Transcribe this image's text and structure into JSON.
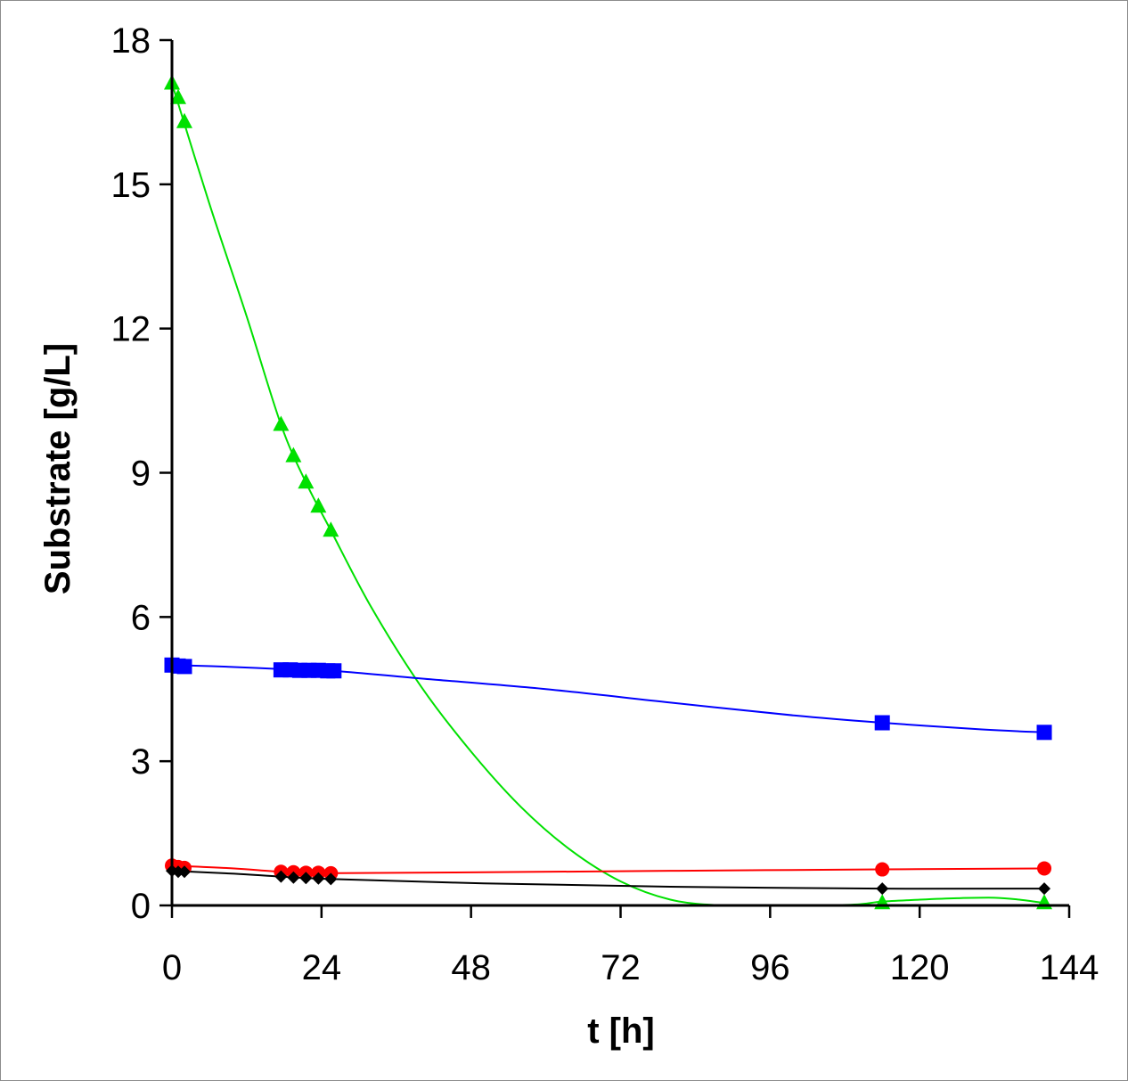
{
  "chart_data": {
    "type": "line",
    "title": "",
    "xlabel": "t [h]",
    "ylabel": "Substrate  [g/L]",
    "xlim": [
      0,
      144
    ],
    "ylim": [
      0,
      18
    ],
    "xticks": [
      0,
      24,
      48,
      72,
      96,
      120,
      144
    ],
    "yticks": [
      0,
      3,
      6,
      9,
      12,
      15,
      18
    ],
    "xtick_labels": [
      "0",
      "24",
      "48",
      "72",
      "96",
      "120",
      "144"
    ],
    "ytick_labels": [
      "0",
      "3",
      "6",
      "9",
      "12",
      "15",
      "18"
    ],
    "grid": false,
    "legend": "none",
    "series": [
      {
        "name": "green-triangles",
        "color": "#00e000",
        "marker": "triangle",
        "x": [
          0,
          1,
          2,
          17.5,
          19.5,
          21.5,
          23.5,
          25.5,
          114,
          140
        ],
        "y": [
          17.1,
          16.8,
          16.3,
          10.0,
          9.35,
          8.8,
          8.3,
          7.8,
          0.05,
          0.05
        ],
        "curve_x": [
          0,
          6,
          12,
          17.5,
          21.5,
          25.5,
          32,
          40,
          48,
          56,
          64,
          72,
          80,
          88,
          96,
          104,
          110,
          114,
          120,
          126,
          132,
          136,
          140
        ],
        "curve_y": [
          17.1,
          14.6,
          12.25,
          10.0,
          8.8,
          7.8,
          6.2,
          4.55,
          3.2,
          2.05,
          1.15,
          0.5,
          0.12,
          0.0,
          0.0,
          0.0,
          0.02,
          0.08,
          0.12,
          0.15,
          0.16,
          0.12,
          0.05
        ]
      },
      {
        "name": "blue-squares",
        "color": "#0000ff",
        "marker": "square",
        "x": [
          0,
          1,
          2,
          17.5,
          19,
          20.5,
          22,
          23.5,
          25,
          26,
          114,
          140
        ],
        "y": [
          5.0,
          4.98,
          4.97,
          4.9,
          4.9,
          4.89,
          4.89,
          4.89,
          4.88,
          4.88,
          3.8,
          3.6
        ],
        "curve_x": [
          0,
          10,
          20,
          26,
          40,
          60,
          80,
          100,
          114,
          130,
          140
        ],
        "curve_y": [
          5.0,
          4.96,
          4.9,
          4.88,
          4.72,
          4.5,
          4.22,
          3.95,
          3.8,
          3.66,
          3.6
        ]
      },
      {
        "name": "red-circles",
        "color": "#ff0000",
        "marker": "circle",
        "x": [
          0,
          1,
          2,
          17.5,
          19.5,
          21.5,
          23.5,
          25.5,
          114,
          140
        ],
        "y": [
          0.83,
          0.8,
          0.78,
          0.7,
          0.69,
          0.68,
          0.68,
          0.67,
          0.75,
          0.77
        ],
        "curve_x": [
          0,
          10,
          17.5,
          25.5,
          50,
          80,
          114,
          140
        ],
        "curve_y": [
          0.83,
          0.77,
          0.7,
          0.67,
          0.69,
          0.72,
          0.75,
          0.77
        ]
      },
      {
        "name": "black-diamonds",
        "color": "#000000",
        "marker": "diamond",
        "x": [
          0,
          1,
          2,
          17.5,
          19.5,
          21.5,
          23.5,
          25.5,
          114,
          140
        ],
        "y": [
          0.72,
          0.7,
          0.7,
          0.6,
          0.58,
          0.57,
          0.56,
          0.55,
          0.35,
          0.35
        ],
        "curve_x": [
          0,
          10,
          17.5,
          25.5,
          50,
          80,
          114,
          140
        ],
        "curve_y": [
          0.72,
          0.66,
          0.6,
          0.55,
          0.46,
          0.39,
          0.35,
          0.35
        ]
      }
    ]
  }
}
